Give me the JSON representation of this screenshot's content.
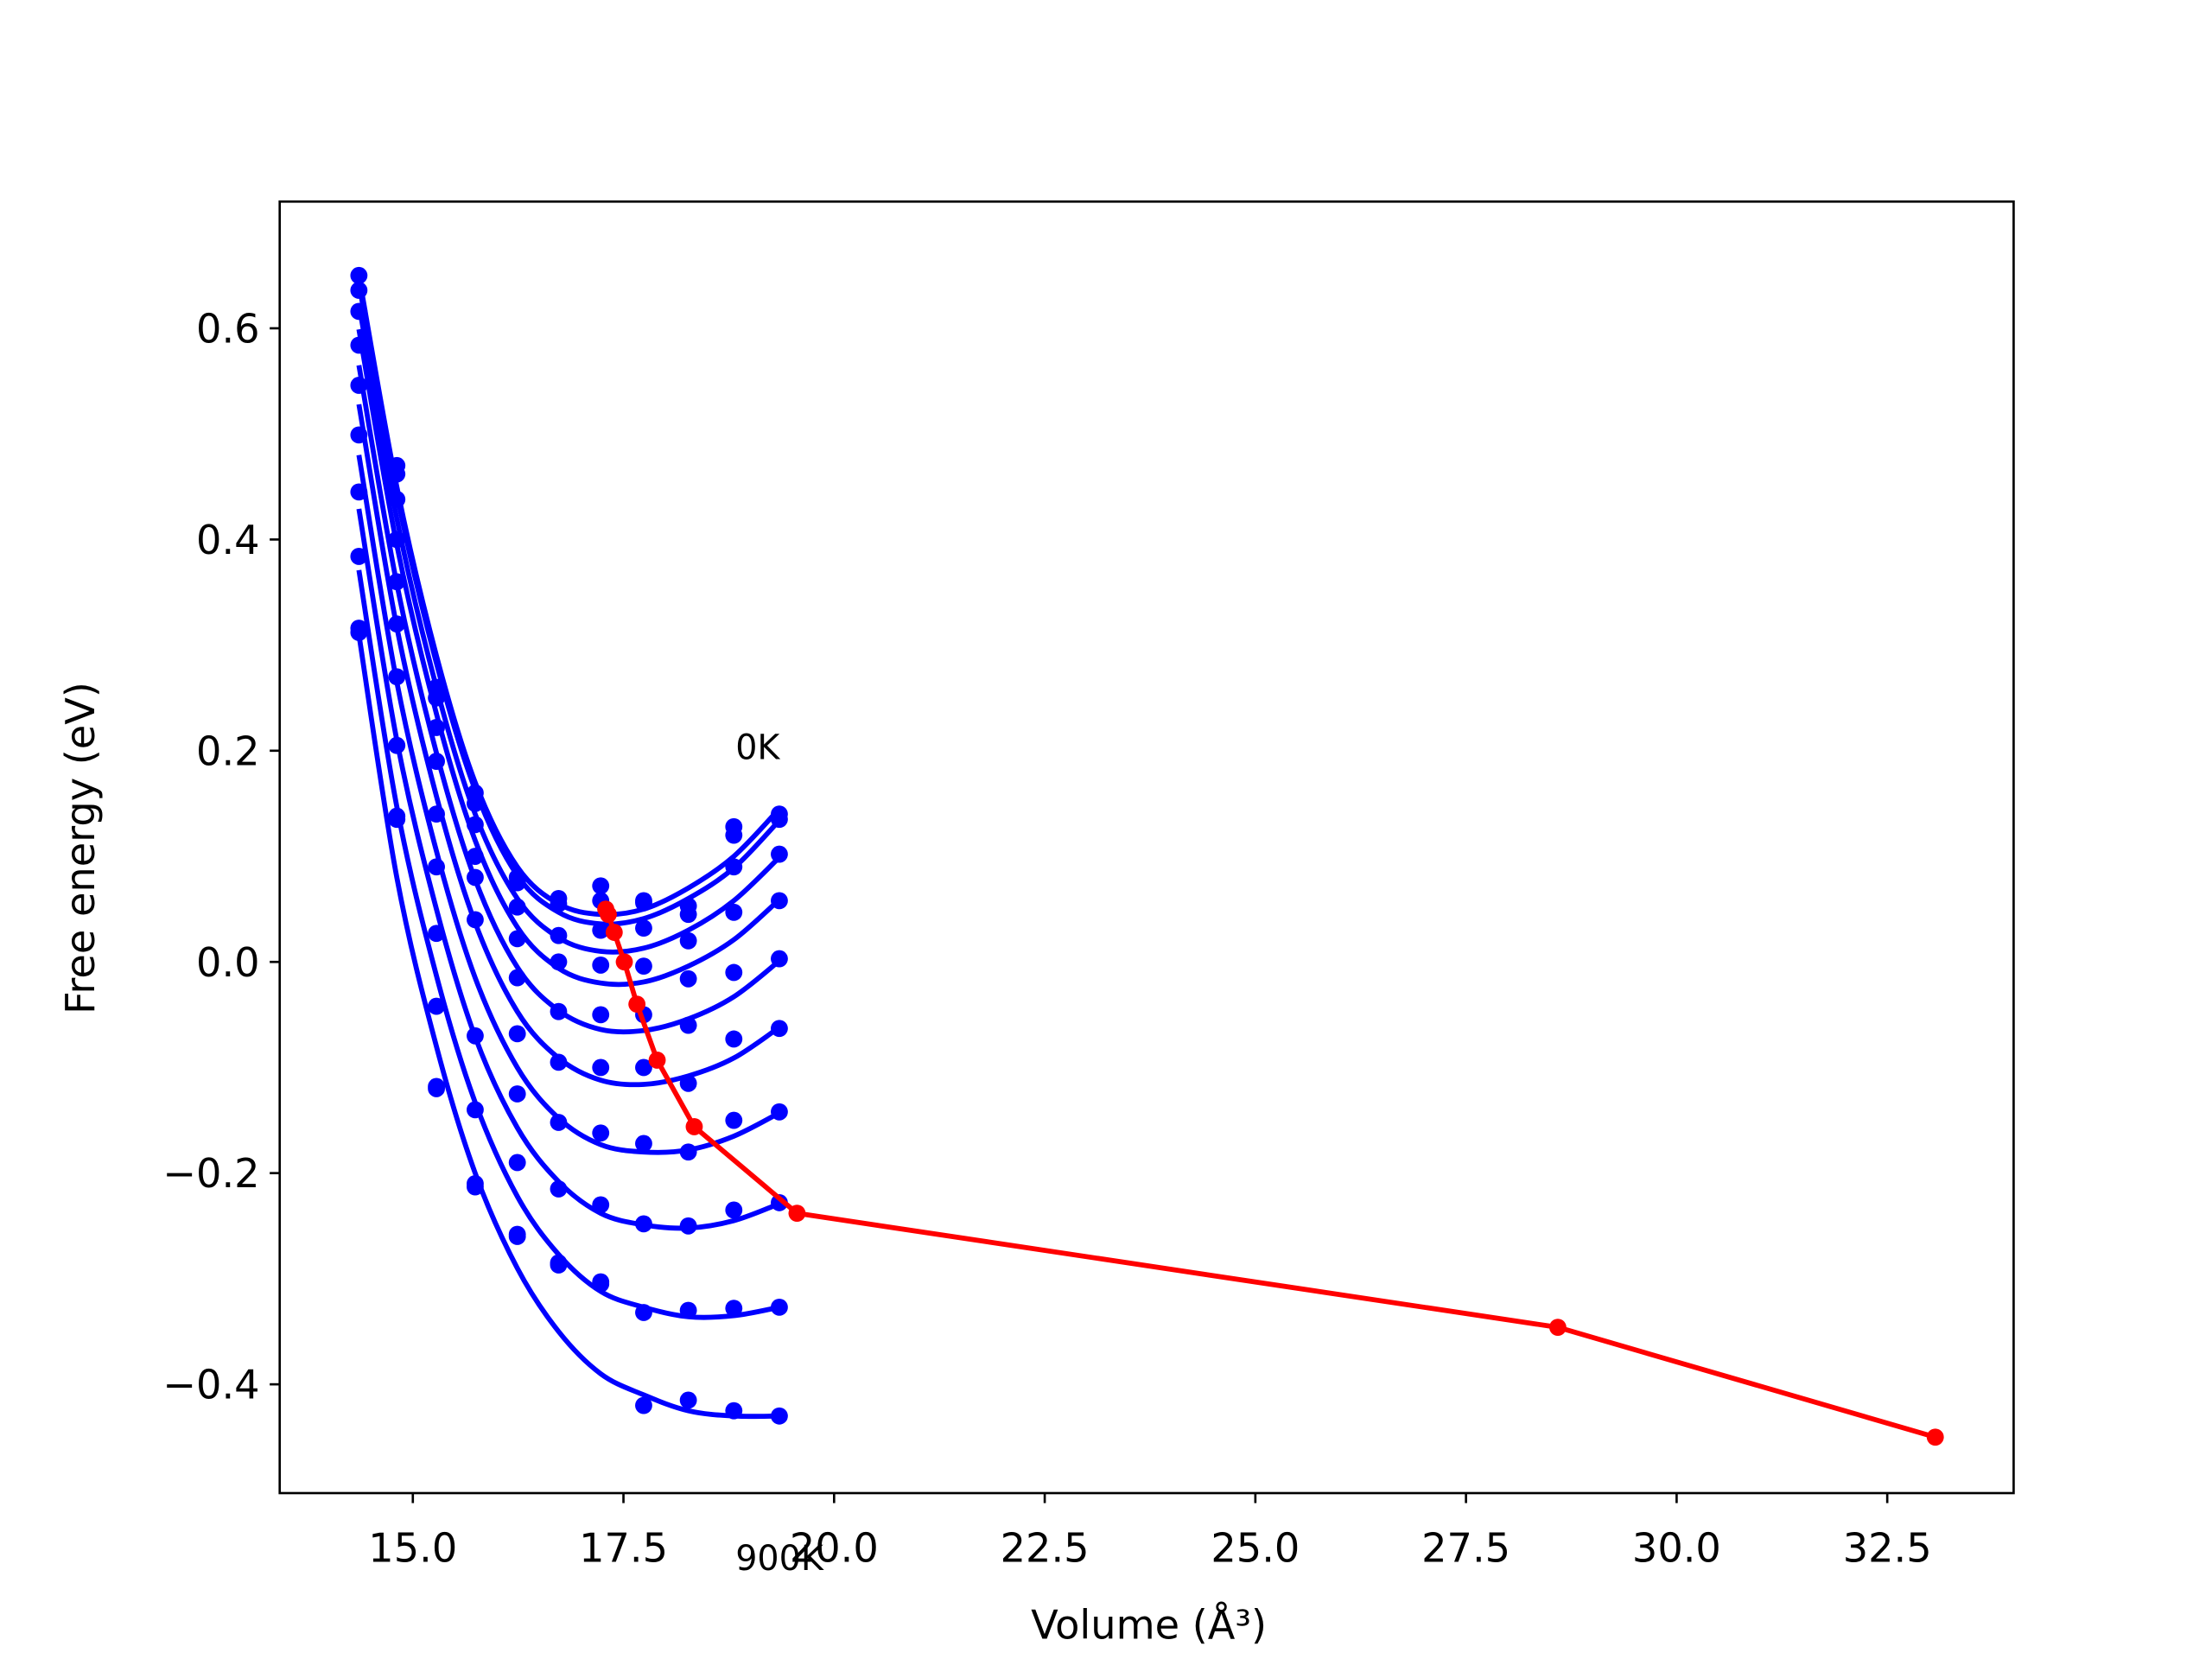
{
  "chart_data": {
    "type": "line",
    "xlabel": "Volume (Å³)",
    "ylabel": "Free energy (eV)",
    "xlim": [
      13.42,
      34.0
    ],
    "ylim": [
      -0.503,
      0.72
    ],
    "xticks": [
      {
        "value": 15,
        "label": "15.0"
      },
      17.5,
      {
        "value": 20,
        "label": "20.0"
      },
      22.5,
      {
        "value": 25,
        "label": "25.0"
      },
      27.5,
      {
        "value": 30,
        "label": "30.0"
      },
      32.5
    ],
    "yticks": [
      {
        "value": -0.4,
        "label": "−0.4"
      },
      {
        "value": -0.2,
        "label": "−0.2"
      },
      {
        "value": 0,
        "label": "0.0"
      },
      0.2,
      0.4,
      0.6
    ],
    "annotations": [
      {
        "text": "0K",
        "x": 18.83,
        "y": 0.203
      },
      {
        "text": "900K",
        "x": 18.83,
        "y": -0.565
      }
    ],
    "x": [
      14.36,
      14.81,
      15.28,
      15.74,
      16.24,
      16.73,
      17.23,
      17.74,
      18.27,
      18.81,
      19.35
    ],
    "series": [
      {
        "style": "line",
        "color": "#0000ff",
        "values": [
          0.65,
          0.45,
          0.29,
          0.17,
          0.09,
          0.055,
          0.045,
          0.05,
          0.07,
          0.1,
          0.145
        ]
      },
      {
        "style": "line",
        "color": "#0000ff",
        "values": [
          0.643,
          0.443,
          0.283,
          0.163,
          0.082,
          0.047,
          0.036,
          0.041,
          0.06,
          0.089,
          0.134
        ]
      },
      {
        "style": "line",
        "color": "#0000ff",
        "values": [
          0.623,
          0.42,
          0.26,
          0.14,
          0.06,
          0.023,
          0.01,
          0.013,
          0.03,
          0.058,
          0.099
        ]
      },
      {
        "style": "line",
        "color": "#0000ff",
        "values": [
          0.599,
          0.395,
          0.235,
          0.115,
          0.033,
          -0.006,
          -0.02,
          -0.019,
          -0.004,
          0.021,
          0.059
        ]
      },
      {
        "style": "line",
        "color": "#0000ff",
        "values": [
          0.565,
          0.358,
          0.198,
          0.078,
          -0.005,
          -0.046,
          -0.064,
          -0.065,
          -0.054,
          -0.033,
          0.001
        ]
      },
      {
        "style": "line",
        "color": "#0000ff",
        "values": [
          0.528,
          0.317,
          0.157,
          0.037,
          -0.047,
          -0.091,
          -0.112,
          -0.116,
          -0.108,
          -0.091,
          -0.062
        ]
      },
      {
        "style": "line",
        "color": "#0000ff",
        "values": [
          0.48,
          0.265,
          0.105,
          -0.015,
          -0.1,
          -0.148,
          -0.173,
          -0.18,
          -0.178,
          -0.165,
          -0.143
        ]
      },
      {
        "style": "line",
        "color": "#0000ff",
        "values": [
          0.429,
          0.21,
          0.05,
          -0.071,
          -0.157,
          -0.208,
          -0.238,
          -0.249,
          -0.252,
          -0.245,
          -0.229
        ]
      },
      {
        "style": "line",
        "color": "#0000ff",
        "values": [
          0.371,
          0.147,
          -0.013,
          -0.133,
          -0.222,
          -0.277,
          -0.312,
          -0.327,
          -0.336,
          -0.335,
          -0.327
        ]
      },
      {
        "style": "line",
        "color": "#0000ff",
        "values": [
          0.31,
          0.08,
          -0.08,
          -0.2,
          -0.29,
          -0.35,
          -0.39,
          -0.41,
          -0.425,
          -0.43,
          -0.43
        ]
      },
      {
        "style": "points",
        "color": "#0000ff",
        "values": [
          0.65,
          0.47,
          0.26,
          0.16,
          0.08,
          0.06,
          0.072,
          0.058,
          0.053,
          0.128,
          0.14
        ]
      },
      {
        "style": "points",
        "color": "#0000ff",
        "values": [
          0.636,
          0.462,
          0.25,
          0.15,
          0.075,
          0.055,
          0.058,
          0.056,
          0.045,
          0.12,
          0.135
        ]
      },
      {
        "style": "points",
        "color": "#0000ff",
        "values": [
          0.616,
          0.438,
          0.222,
          0.13,
          0.052,
          0.025,
          0.03,
          0.032,
          0.02,
          0.09,
          0.102
        ]
      },
      {
        "style": "points",
        "color": "#0000ff",
        "values": [
          0.584,
          0.4,
          0.19,
          0.1,
          0.022,
          0.0,
          -0.003,
          -0.004,
          -0.016,
          0.047,
          0.058
        ]
      },
      {
        "style": "points",
        "color": "#0000ff",
        "values": [
          0.546,
          0.36,
          0.14,
          0.08,
          -0.015,
          -0.047,
          -0.05,
          -0.05,
          -0.06,
          -0.01,
          0.003
        ]
      },
      {
        "style": "points",
        "color": "#0000ff",
        "values": [
          0.499,
          0.32,
          0.09,
          0.04,
          -0.068,
          -0.095,
          -0.1,
          -0.1,
          -0.115,
          -0.073,
          -0.063
        ]
      },
      {
        "style": "points",
        "color": "#0000ff",
        "values": [
          0.445,
          0.27,
          0.027,
          -0.07,
          -0.125,
          -0.152,
          -0.162,
          -0.172,
          -0.18,
          -0.15,
          -0.142
        ]
      },
      {
        "style": "points",
        "color": "#0000ff",
        "values": [
          0.384,
          0.205,
          -0.042,
          -0.14,
          -0.19,
          -0.215,
          -0.23,
          -0.248,
          -0.25,
          -0.235,
          -0.228
        ]
      },
      {
        "style": "points",
        "color": "#0000ff",
        "values": [
          0.316,
          0.135,
          -0.12,
          -0.213,
          -0.26,
          -0.287,
          -0.305,
          -0.332,
          -0.33,
          -0.328,
          -0.327
        ]
      },
      {
        "style": "points",
        "color": "#0000ff",
        "values": [
          0.312,
          0.138,
          -0.118,
          -0.21,
          -0.258,
          -0.285,
          -0.303,
          -0.42,
          -0.415,
          -0.425,
          -0.43
        ]
      },
      {
        "style": "line+points",
        "color": "#ff0000",
        "x": [
          17.29,
          17.32,
          17.39,
          17.51,
          17.66,
          17.9,
          18.34,
          19.56,
          28.59,
          33.07
        ],
        "values": [
          0.05,
          0.045,
          0.028,
          0.0,
          -0.04,
          -0.093,
          -0.156,
          -0.238,
          -0.346,
          -0.45
        ]
      }
    ]
  }
}
